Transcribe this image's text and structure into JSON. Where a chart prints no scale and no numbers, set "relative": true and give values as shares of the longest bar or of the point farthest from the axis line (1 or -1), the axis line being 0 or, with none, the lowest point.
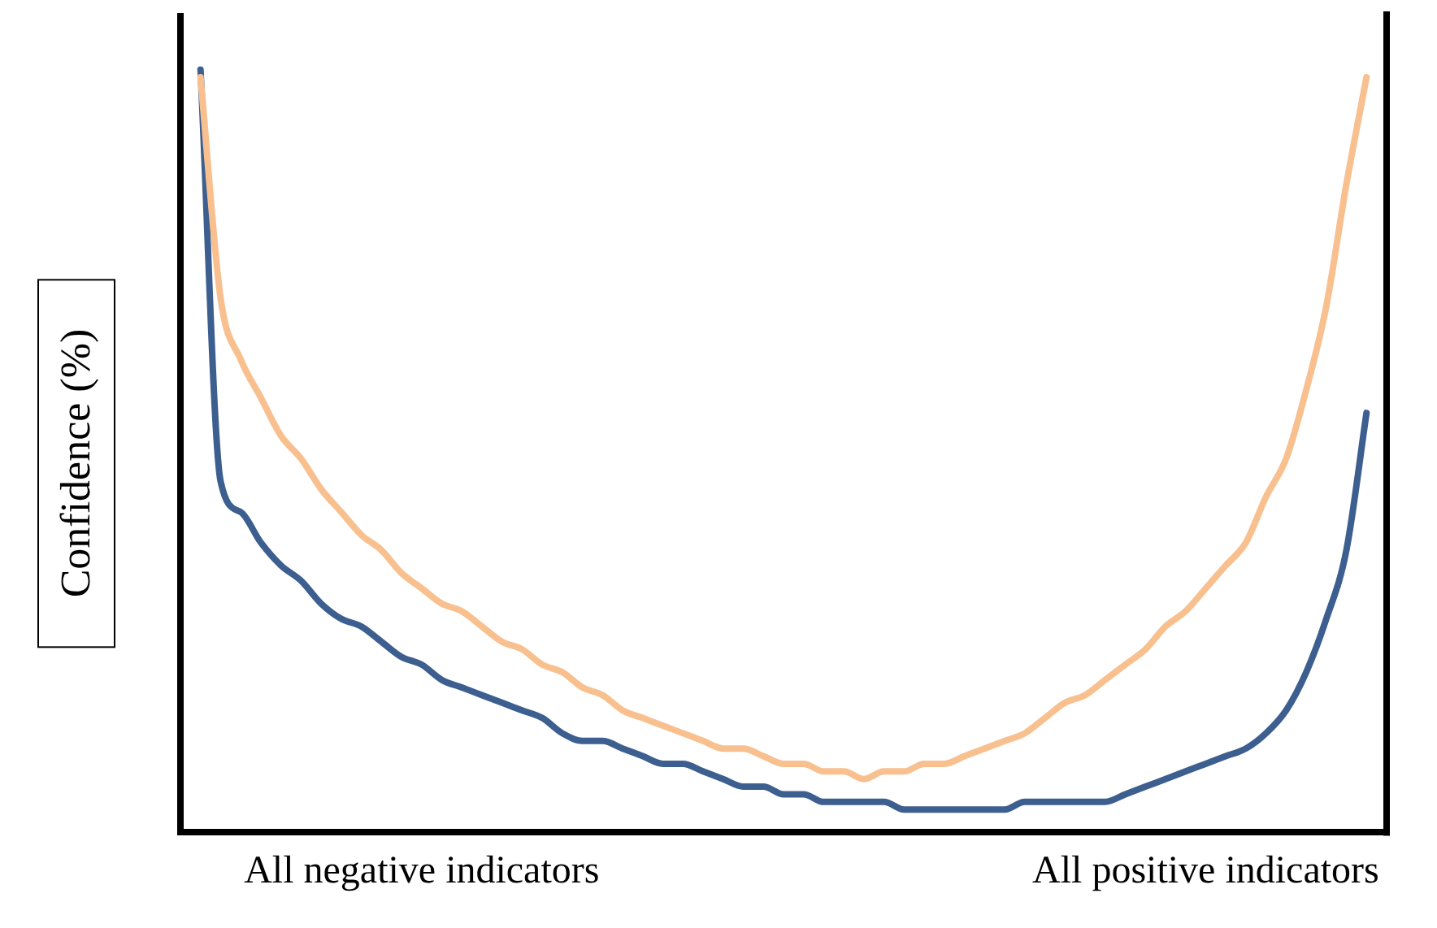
{
  "chart_data": {
    "type": "line",
    "ylabel": "Confidence (%)",
    "relative": true,
    "categories": [
      null,
      null,
      null,
      null,
      null,
      null,
      null,
      null,
      null,
      null,
      null,
      null,
      "All negative indicators",
      null,
      null,
      null,
      null,
      null,
      null,
      null,
      null,
      null,
      null,
      null,
      null,
      null,
      null,
      null,
      null,
      null,
      null,
      null,
      null,
      null,
      null,
      null,
      null,
      null,
      null,
      null,
      null,
      null,
      null,
      null,
      null,
      null,
      null,
      null,
      null,
      null,
      null,
      "All positive indicators",
      null,
      null,
      null,
      null,
      null,
      null,
      null,
      null,
      null
    ],
    "series": [
      {
        "color": "#f9c08f",
        "values": [
          null,
          0.99,
          0.7,
          0.62,
          0.57,
          0.52,
          0.49,
          0.45,
          0.42,
          0.39,
          0.37,
          0.34,
          0.32,
          0.3,
          0.29,
          0.27,
          0.25,
          0.24,
          0.22,
          0.21,
          0.19,
          0.18,
          0.16,
          0.15,
          0.14,
          0.13,
          0.12,
          0.11,
          0.11,
          0.1,
          0.09,
          0.09,
          0.08,
          0.08,
          0.07,
          0.08,
          0.08,
          0.09,
          0.09,
          0.1,
          0.11,
          0.12,
          0.13,
          0.15,
          0.17,
          0.18,
          0.2,
          0.22,
          0.24,
          0.27,
          0.29,
          0.32,
          0.35,
          0.38,
          0.44,
          0.49,
          0.58,
          0.69,
          0.85,
          0.99,
          null
        ]
      },
      {
        "color": "#3d5f8f",
        "values": [
          null,
          1.0,
          0.46,
          0.42,
          0.38,
          0.35,
          0.33,
          0.3,
          0.28,
          0.27,
          0.25,
          0.23,
          0.22,
          0.2,
          0.19,
          0.18,
          0.17,
          0.16,
          0.15,
          0.13,
          0.12,
          0.12,
          0.11,
          0.1,
          0.09,
          0.09,
          0.08,
          0.07,
          0.06,
          0.06,
          0.05,
          0.05,
          0.04,
          0.04,
          0.04,
          0.04,
          0.03,
          0.03,
          0.03,
          0.03,
          0.03,
          0.03,
          0.04,
          0.04,
          0.04,
          0.04,
          0.04,
          0.05,
          0.06,
          0.07,
          0.08,
          0.09,
          0.1,
          0.11,
          0.13,
          0.16,
          0.21,
          0.28,
          0.37,
          0.55,
          null
        ]
      }
    ]
  }
}
